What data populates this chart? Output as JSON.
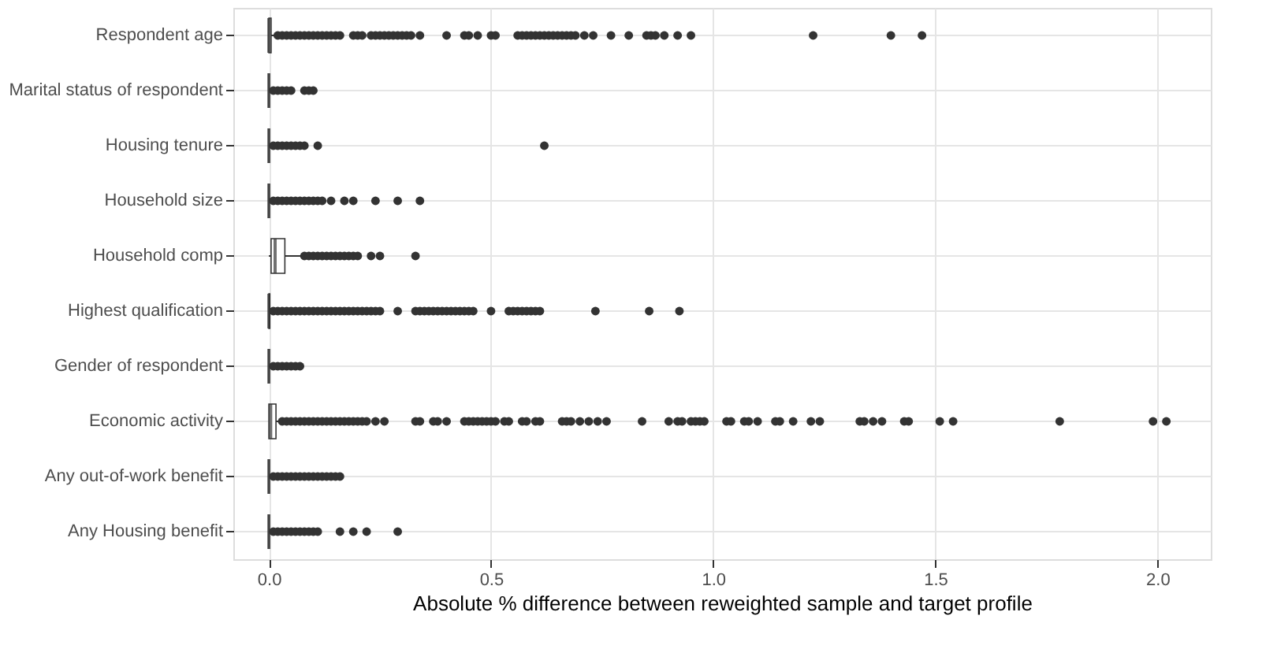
{
  "chart_data": {
    "type": "box",
    "orientation": "horizontal",
    "xlabel": "Absolute % difference between reweighted sample and target profile",
    "grid": true,
    "color": "#333333",
    "xlim": [
      -0.08,
      2.12
    ],
    "xticks": [
      {
        "value": 0,
        "label": "0.0"
      },
      0.5,
      {
        "value": 1,
        "label": "1.0"
      },
      1.5,
      {
        "value": 2,
        "label": "2.0"
      }
    ],
    "categories": [
      "Respondent age",
      "Marital status of respondent",
      "Housing tenure",
      "Household size",
      "Household comp",
      "Highest qualification",
      "Gender of respondent",
      "Economic activity",
      "Any out-of-work benefit",
      "Any Housing benefit"
    ],
    "boxes": [
      {
        "low": 0,
        "q1": 0,
        "median": 0,
        "q3": 0.005,
        "high": 0.012,
        "outliers": [
          0.02,
          0.03,
          0.04,
          0.05,
          0.06,
          0.07,
          0.08,
          0.09,
          0.1,
          0.11,
          0.12,
          0.13,
          0.14,
          0.15,
          0.16,
          0.19,
          0.2,
          0.21,
          0.23,
          0.24,
          0.25,
          0.26,
          0.27,
          0.28,
          0.29,
          0.3,
          0.31,
          0.32,
          0.34,
          0.4,
          0.44,
          0.45,
          0.47,
          0.5,
          0.51,
          0.56,
          0.57,
          0.58,
          0.59,
          0.6,
          0.61,
          0.62,
          0.63,
          0.64,
          0.65,
          0.66,
          0.67,
          0.68,
          0.69,
          0.71,
          0.73,
          0.77,
          0.81,
          0.85,
          0.86,
          0.87,
          0.89,
          0.92,
          0.95,
          1.225,
          1.4,
          1.47
        ]
      },
      {
        "low": 0,
        "q1": 0,
        "median": 0,
        "q3": 0,
        "high": 0.005,
        "outliers": [
          0.01,
          0.02,
          0.03,
          0.04,
          0.05,
          0.08,
          0.09,
          0.1
        ]
      },
      {
        "low": 0,
        "q1": 0,
        "median": 0,
        "q3": 0,
        "high": 0.005,
        "outliers": [
          0.01,
          0.02,
          0.03,
          0.04,
          0.05,
          0.06,
          0.07,
          0.08,
          0.11,
          0.62
        ]
      },
      {
        "low": 0,
        "q1": 0,
        "median": 0,
        "q3": 0,
        "high": 0.005,
        "outliers": [
          0.01,
          0.02,
          0.03,
          0.04,
          0.05,
          0.06,
          0.07,
          0.08,
          0.09,
          0.1,
          0.11,
          0.12,
          0.14,
          0.17,
          0.19,
          0.24,
          0.29,
          0.34
        ]
      },
      {
        "low": 0,
        "q1": 0.005,
        "median": 0.014,
        "q3": 0.036,
        "high": 0.075,
        "outliers": [
          0.08,
          0.09,
          0.1,
          0.11,
          0.12,
          0.13,
          0.14,
          0.15,
          0.16,
          0.17,
          0.18,
          0.19,
          0.2,
          0.23,
          0.25,
          0.33
        ]
      },
      {
        "low": 0,
        "q1": 0,
        "median": 0,
        "q3": 0.002,
        "high": 0.005,
        "outliers": [
          0.01,
          0.02,
          0.03,
          0.04,
          0.05,
          0.06,
          0.07,
          0.08,
          0.09,
          0.1,
          0.11,
          0.12,
          0.13,
          0.14,
          0.15,
          0.16,
          0.17,
          0.18,
          0.19,
          0.2,
          0.21,
          0.22,
          0.23,
          0.24,
          0.25,
          0.29,
          0.33,
          0.34,
          0.35,
          0.36,
          0.37,
          0.38,
          0.39,
          0.4,
          0.41,
          0.42,
          0.43,
          0.44,
          0.45,
          0.46,
          0.5,
          0.54,
          0.55,
          0.56,
          0.57,
          0.58,
          0.59,
          0.6,
          0.61,
          0.735,
          0.856,
          0.924
        ]
      },
      {
        "low": 0,
        "q1": 0,
        "median": 0,
        "q3": 0,
        "high": 0.005,
        "outliers": [
          0.01,
          0.02,
          0.03,
          0.04,
          0.05,
          0.06,
          0.07
        ]
      },
      {
        "low": 0,
        "q1": 0,
        "median": 0.004,
        "q3": 0.016,
        "high": 0.025,
        "outliers": [
          0.03,
          0.04,
          0.05,
          0.06,
          0.07,
          0.08,
          0.09,
          0.1,
          0.11,
          0.12,
          0.13,
          0.14,
          0.15,
          0.16,
          0.17,
          0.18,
          0.19,
          0.2,
          0.21,
          0.22,
          0.24,
          0.26,
          0.33,
          0.34,
          0.37,
          0.38,
          0.4,
          0.44,
          0.45,
          0.46,
          0.47,
          0.48,
          0.49,
          0.5,
          0.51,
          0.53,
          0.54,
          0.57,
          0.58,
          0.6,
          0.61,
          0.66,
          0.67,
          0.68,
          0.7,
          0.72,
          0.74,
          0.76,
          0.84,
          0.9,
          0.92,
          0.93,
          0.95,
          0.96,
          0.97,
          0.98,
          1.03,
          1.04,
          1.07,
          1.08,
          1.1,
          1.14,
          1.15,
          1.18,
          1.22,
          1.24,
          1.33,
          1.34,
          1.36,
          1.38,
          1.43,
          1.44,
          1.51,
          1.54,
          1.78,
          1.99,
          2.02
        ]
      },
      {
        "low": 0,
        "q1": 0,
        "median": 0,
        "q3": 0,
        "high": 0.005,
        "outliers": [
          0.01,
          0.02,
          0.03,
          0.04,
          0.05,
          0.06,
          0.07,
          0.08,
          0.09,
          0.1,
          0.11,
          0.12,
          0.13,
          0.14,
          0.15,
          0.16
        ]
      },
      {
        "low": 0,
        "q1": 0,
        "median": 0,
        "q3": 0,
        "high": 0.005,
        "outliers": [
          0.01,
          0.02,
          0.03,
          0.04,
          0.05,
          0.06,
          0.07,
          0.08,
          0.09,
          0.1,
          0.11,
          0.16,
          0.19,
          0.22,
          0.29
        ]
      }
    ]
  }
}
